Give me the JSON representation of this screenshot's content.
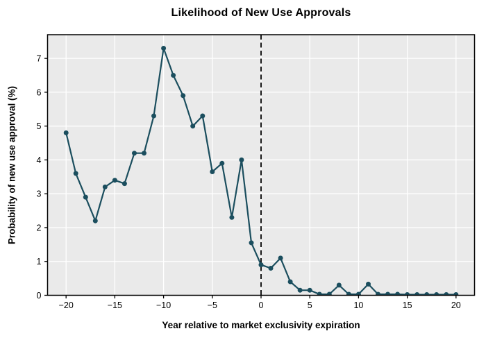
{
  "chart_data": {
    "type": "line",
    "title": "Likelihood of New Use Approvals",
    "xlabel": "Year relative to market exclusivity expiration",
    "ylabel": "Probability of new use approval (%)",
    "x": [
      -20,
      -19,
      -18,
      -17,
      -16,
      -15,
      -14,
      -13,
      -12,
      -11,
      -10,
      -9,
      -8,
      -7,
      -6,
      -5,
      -4,
      -3,
      -2,
      -1,
      0,
      1,
      2,
      3,
      4,
      5,
      6,
      7,
      8,
      9,
      10,
      11,
      12,
      13,
      14,
      15,
      16,
      17,
      18,
      19,
      20
    ],
    "values": [
      4.8,
      3.6,
      2.9,
      2.2,
      3.2,
      3.4,
      3.3,
      4.2,
      4.2,
      5.3,
      7.3,
      6.5,
      5.9,
      5.0,
      5.3,
      3.65,
      3.9,
      2.3,
      4.0,
      1.55,
      0.9,
      0.8,
      1.1,
      0.4,
      0.15,
      0.15,
      0.03,
      0.03,
      0.3,
      0.03,
      0.03,
      0.33,
      0.03,
      0.03,
      0.03,
      0.02,
      0.02,
      0.02,
      0.02,
      0.02,
      0.02
    ],
    "xticks": [
      -20,
      -15,
      -10,
      -5,
      0,
      5,
      10,
      15,
      20
    ],
    "xtick_labels": [
      "−20",
      "−15",
      "−10",
      "−5",
      "0",
      "5",
      "10",
      "15",
      "20"
    ],
    "yticks": [
      0,
      1,
      2,
      3,
      4,
      5,
      6,
      7
    ],
    "ytick_labels": [
      "0",
      "1",
      "2",
      "3",
      "4",
      "5",
      "6",
      "7"
    ],
    "xlim": [
      -21.9,
      21.9
    ],
    "ylim": [
      0,
      7.7
    ],
    "ref_line_x": 0,
    "grid": true,
    "legend": "none",
    "colors": {
      "line": "#1b4e5e",
      "marker": "#1b4e5e",
      "plot_bg": "#eaeaea",
      "grid": "#ffffff",
      "ref_line": "#000000",
      "spine": "#000000",
      "text": "#000000"
    }
  }
}
